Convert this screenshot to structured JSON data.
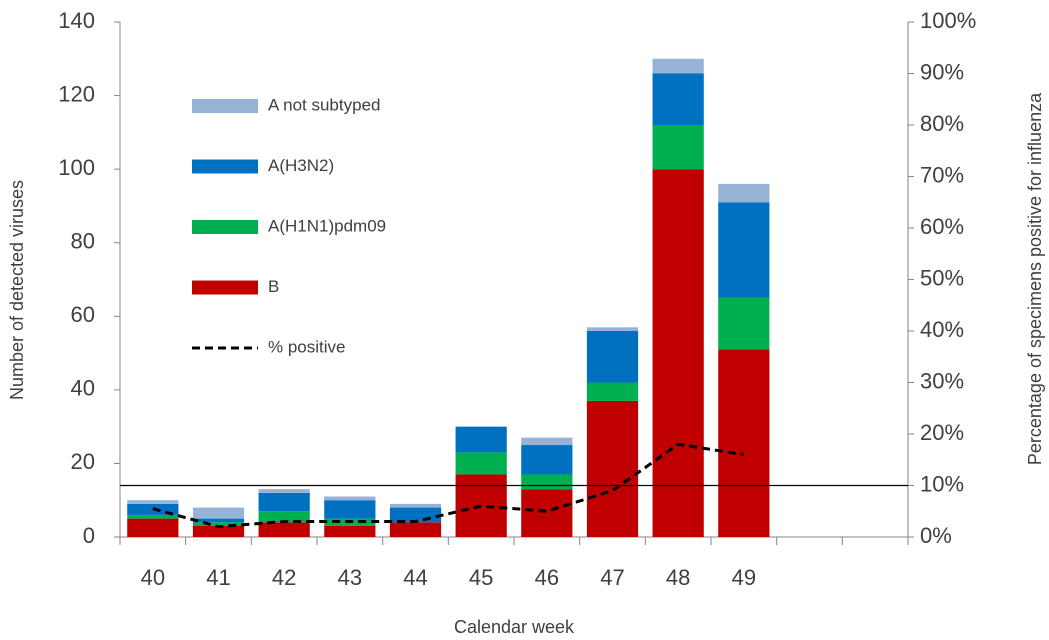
{
  "chart_data": {
    "type": "bar",
    "stacked": true,
    "x_label": "Calendar week",
    "y_label": "Number of detected viruses",
    "y2_label": "Percentage of specimens positive for influenza",
    "categories": [
      "40",
      "41",
      "42",
      "43",
      "44",
      "45",
      "46",
      "47",
      "48",
      "49",
      null,
      null
    ],
    "series": [
      {
        "name": "A not subtyped",
        "color": "#95b3d7",
        "values": [
          1,
          3,
          1,
          1,
          1,
          0,
          2,
          1,
          4,
          5,
          null,
          null
        ]
      },
      {
        "name": "A(H3N2)",
        "color": "#0070c0",
        "values": [
          3,
          1,
          5,
          5,
          4,
          7,
          8,
          14,
          14,
          26,
          null,
          null
        ]
      },
      {
        "name": "A(H1N1)pdm09",
        "color": "#00b050",
        "values": [
          1,
          1,
          3,
          2,
          0,
          6,
          4,
          5,
          12,
          14,
          null,
          null
        ]
      },
      {
        "name": "B",
        "color": "#c00000",
        "values": [
          5,
          3,
          4,
          3,
          4,
          17,
          13,
          37,
          100,
          51,
          null,
          null
        ]
      },
      {
        "name": "% positive",
        "type": "line",
        "axis": "y2",
        "color": "#000000",
        "dashed": true,
        "values": [
          5.5,
          2,
          3,
          3,
          3,
          6,
          5,
          9,
          18,
          16,
          null,
          null
        ]
      }
    ],
    "reference_line": {
      "axis": "y2",
      "value": 10,
      "color": "#000000"
    },
    "ylim": [
      0,
      140
    ],
    "yticks": [
      0,
      20,
      40,
      60,
      80,
      100,
      120,
      140
    ],
    "y2lim": [
      0,
      100
    ],
    "y2ticks": [
      {
        "value": 0,
        "label": "0%"
      },
      {
        "value": 10,
        "label": "10%"
      },
      {
        "value": 20,
        "label": "20%"
      },
      {
        "value": 30,
        "label": "30%"
      },
      {
        "value": 40,
        "label": "40%"
      },
      {
        "value": 50,
        "label": "50%"
      },
      {
        "value": 60,
        "label": "60%"
      },
      {
        "value": 70,
        "label": "70%"
      },
      {
        "value": 80,
        "label": "80%"
      },
      {
        "value": 90,
        "label": "90%"
      },
      {
        "value": 100,
        "label": "100%"
      }
    ],
    "grid": false,
    "legend": "upper left"
  }
}
